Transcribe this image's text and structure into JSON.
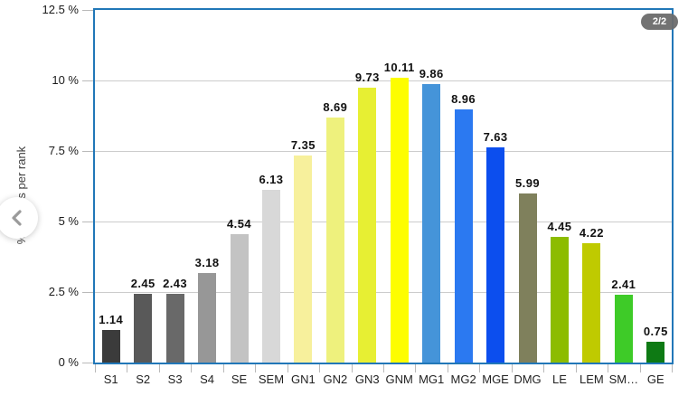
{
  "ui": {
    "pagination_badge": "2/2",
    "prev_button_icon": "chevron-left-icon"
  },
  "chart_data": {
    "type": "bar",
    "title": "",
    "xlabel": "",
    "ylabel": "% players per rank",
    "ylim": [
      0,
      12.5
    ],
    "grid": true,
    "legend": "none",
    "value_labels": true,
    "categories": [
      "S1",
      "S2",
      "S3",
      "S4",
      "SE",
      "SEM",
      "GN1",
      "GN2",
      "GN3",
      "GNM",
      "MG1",
      "MG2",
      "MGE",
      "DMG",
      "LE",
      "LEM",
      "SM…",
      "GE"
    ],
    "values": [
      1.14,
      2.45,
      2.43,
      3.18,
      4.54,
      6.13,
      7.35,
      8.69,
      9.73,
      10.11,
      9.86,
      8.96,
      7.63,
      5.99,
      4.45,
      4.22,
      2.41,
      0.75
    ],
    "bar_colors": [
      "#3b3b3b",
      "#595959",
      "#696969",
      "#979797",
      "#c3c3c3",
      "#d8d8d8",
      "#f7f09c",
      "#eef17d",
      "#e7ef33",
      "#fdfd00",
      "#4594d9",
      "#2b79f1",
      "#0c4eee",
      "#7f805c",
      "#8cbc00",
      "#bfca00",
      "#3ecb28",
      "#0e7a14"
    ],
    "yticks": [
      {
        "value": 0,
        "label": "0 %"
      },
      {
        "value": 2.5,
        "label": "2.5 %"
      },
      {
        "value": 5,
        "label": "5 %"
      },
      {
        "value": 7.5,
        "label": "7.5 %"
      },
      {
        "value": 10,
        "label": "10 %"
      },
      {
        "value": 12.5,
        "label": "12.5 %"
      }
    ],
    "colors": {
      "plot_border": "#2177b8",
      "gridline": "#cccccc",
      "tick_mark": "#b9b9b9"
    }
  }
}
